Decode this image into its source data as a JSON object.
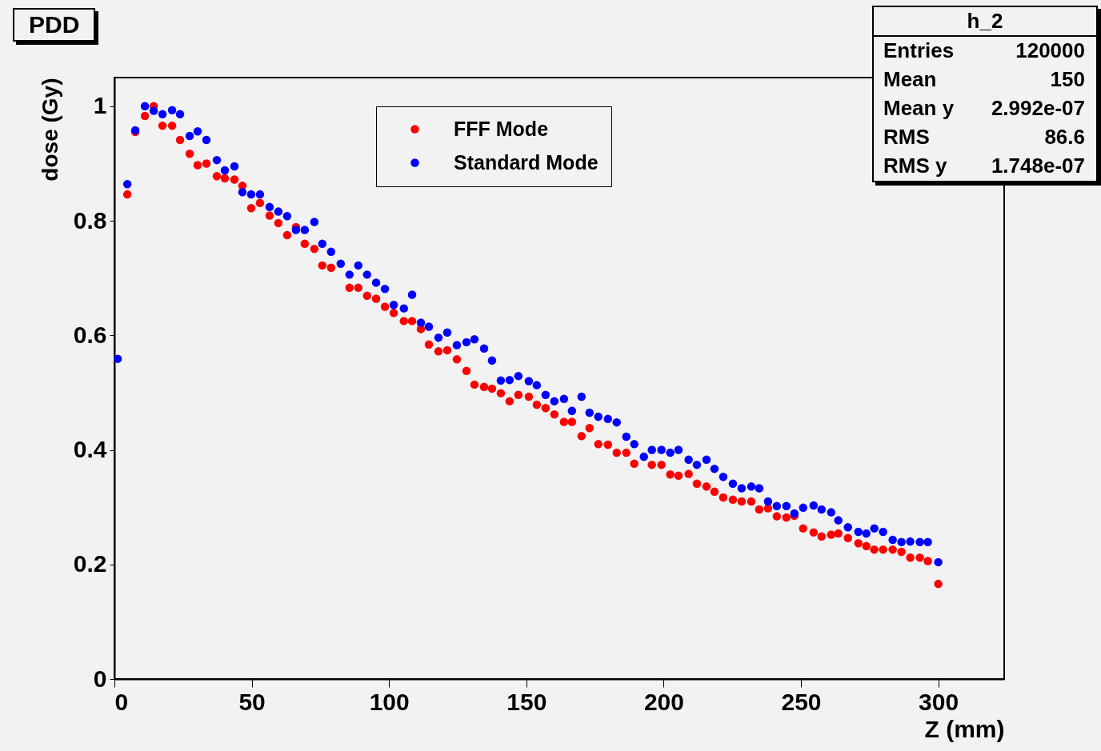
{
  "chart_data": {
    "type": "scatter",
    "title": "PDD",
    "xlabel": "Z (mm)",
    "ylabel": "dose (Gy)",
    "x": [
      1.2,
      4.7,
      7.6,
      11.1,
      14.3,
      17.5,
      21.0,
      23.9,
      27.4,
      30.3,
      33.5,
      37.3,
      40.2,
      43.7,
      46.6,
      49.8,
      53.0,
      56.5,
      59.7,
      62.9,
      66.1,
      69.3,
      72.8,
      75.7,
      78.9,
      82.4,
      85.6,
      88.8,
      92.0,
      95.3,
      98.5,
      101.7,
      105.4,
      108.4,
      111.6,
      114.5,
      118.0,
      121.2,
      124.7,
      128.2,
      131.1,
      134.6,
      137.5,
      140.7,
      143.9,
      147.1,
      150.9,
      153.8,
      157.0,
      160.2,
      163.7,
      166.6,
      170.1,
      173.0,
      176.2,
      179.7,
      182.9,
      186.4,
      189.3,
      192.8,
      195.7,
      199.2,
      202.4,
      205.4,
      209.1,
      212.1,
      215.6,
      218.5,
      221.7,
      225.2,
      228.4,
      231.9,
      234.8,
      238.0,
      241.2,
      244.7,
      247.6,
      250.8,
      254.6,
      257.5,
      261.0,
      263.6,
      267.1,
      270.9,
      273.8,
      276.7,
      279.9,
      283.4,
      286.6,
      289.8,
      293.3,
      296.2,
      300
    ],
    "series": [
      {
        "name": "FFF Mode",
        "color": "#ff0000",
        "values": [
          null,
          0.846,
          0.955,
          0.983,
          1.0,
          0.966,
          0.966,
          0.941,
          0.917,
          0.897,
          0.9,
          0.878,
          0.874,
          0.872,
          0.861,
          0.822,
          0.831,
          0.809,
          0.796,
          0.775,
          0.789,
          0.76,
          0.751,
          0.722,
          0.718,
          null,
          0.683,
          0.683,
          0.669,
          0.664,
          0.65,
          0.639,
          0.625,
          0.625,
          0.611,
          0.584,
          0.572,
          0.574,
          0.558,
          0.538,
          0.514,
          0.51,
          0.507,
          0.499,
          0.485,
          0.496,
          0.493,
          0.479,
          0.473,
          0.462,
          0.449,
          0.449,
          0.424,
          0.438,
          0.41,
          0.409,
          0.395,
          0.395,
          0.376,
          null,
          0.374,
          0.374,
          0.357,
          0.355,
          0.358,
          0.341,
          0.336,
          0.327,
          0.317,
          0.313,
          0.31,
          0.31,
          0.296,
          0.298,
          0.284,
          0.282,
          0.285,
          0.263,
          0.256,
          0.249,
          0.252,
          0.254,
          0.246,
          0.237,
          0.232,
          0.226,
          0.226,
          0.226,
          0.222,
          0.212,
          0.212,
          0.206,
          0.166
        ]
      },
      {
        "name": "Standard Mode",
        "color": "#0000ff",
        "values": [
          0.559,
          0.864,
          0.958,
          1.0,
          0.992,
          0.986,
          0.993,
          0.986,
          0.948,
          0.956,
          0.941,
          0.906,
          0.888,
          0.895,
          0.85,
          0.846,
          0.846,
          0.824,
          0.816,
          0.808,
          0.784,
          0.784,
          0.798,
          0.76,
          0.746,
          0.725,
          0.706,
          0.722,
          0.706,
          0.692,
          0.681,
          0.653,
          0.647,
          0.671,
          0.622,
          0.615,
          0.596,
          0.605,
          0.583,
          0.588,
          0.593,
          0.577,
          0.556,
          0.521,
          0.522,
          0.529,
          0.52,
          0.513,
          0.496,
          0.485,
          0.489,
          0.468,
          0.493,
          0.465,
          0.458,
          0.454,
          0.448,
          0.423,
          0.41,
          0.388,
          0.4,
          0.4,
          0.395,
          0.4,
          0.383,
          0.374,
          0.383,
          0.367,
          0.353,
          0.341,
          0.333,
          0.336,
          0.333,
          0.31,
          0.302,
          0.302,
          0.289,
          0.299,
          0.303,
          0.296,
          0.291,
          0.277,
          0.265,
          0.257,
          0.254,
          0.263,
          0.257,
          0.243,
          0.239,
          0.24,
          0.239,
          0.239,
          0.204
        ]
      }
    ],
    "xlim": [
      0,
      324
    ],
    "xticks": [
      0,
      50,
      100,
      150,
      200,
      250,
      300
    ],
    "ylim": [
      0,
      1.05
    ],
    "yticks": [
      0,
      0.2,
      0.4,
      0.6,
      0.8,
      1
    ],
    "grid": false,
    "legend": "top",
    "marker": "circle",
    "annotations": [
      "h_2",
      "Entries 120000",
      "Mean 150",
      "Mean y 2.992e-07",
      "RMS 86.6",
      "RMS y 1.748e-07"
    ]
  }
}
